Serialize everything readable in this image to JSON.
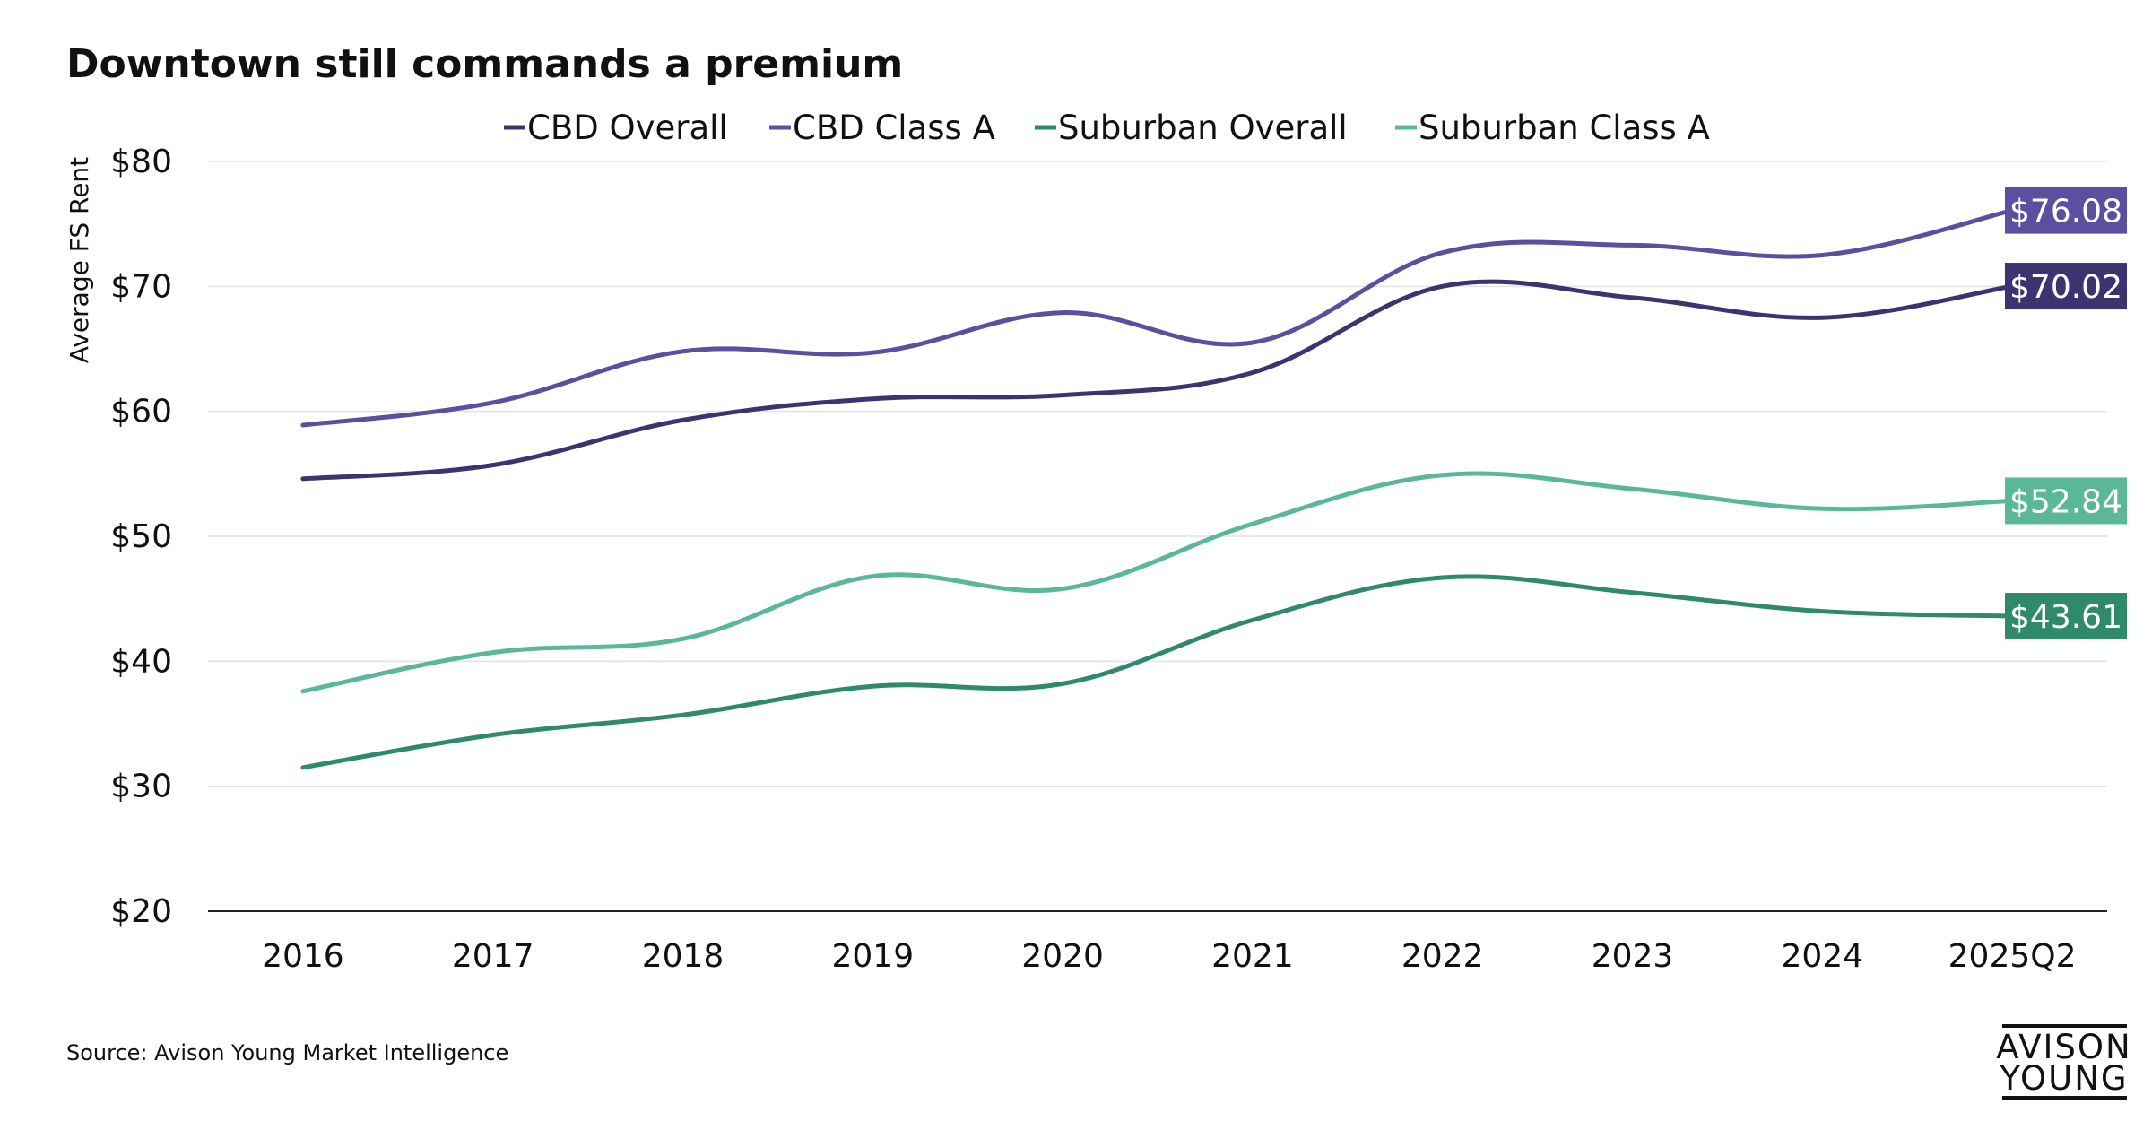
{
  "chart_data": {
    "type": "line",
    "title": "Downtown still commands a premium",
    "ylabel": "Average FS Rent",
    "xlabel": "",
    "ylim": [
      20,
      80
    ],
    "yticks": [
      20,
      30,
      40,
      50,
      60,
      70,
      80
    ],
    "ytick_labels": [
      "$20",
      "$30",
      "$40",
      "$50",
      "$60",
      "$70",
      "$80"
    ],
    "categories": [
      "2016",
      "2017",
      "2018",
      "2019",
      "2020",
      "2021",
      "2022",
      "2023",
      "2024",
      "2025Q2"
    ],
    "grid": "horizontal",
    "legend_position": "top-center",
    "series": [
      {
        "name": "CBD Overall",
        "color": "#3b3470",
        "values": [
          54.6,
          55.7,
          59.3,
          61.0,
          61.3,
          63.1,
          70.0,
          69.1,
          67.5,
          70.02
        ],
        "end_label": "$70.02"
      },
      {
        "name": "CBD Class A",
        "color": "#5b4f9f",
        "values": [
          58.9,
          60.7,
          64.8,
          64.7,
          67.9,
          65.5,
          72.7,
          73.3,
          72.5,
          76.08
        ],
        "end_label": "$76.08"
      },
      {
        "name": "Suburban Overall",
        "color": "#2f8a6c",
        "values": [
          31.5,
          34.1,
          35.7,
          38.0,
          38.2,
          43.3,
          46.7,
          45.5,
          44.0,
          43.61
        ],
        "end_label": "$43.61"
      },
      {
        "name": "Suburban Class A",
        "color": "#5bb896",
        "values": [
          37.6,
          40.7,
          41.8,
          46.8,
          45.8,
          51.0,
          54.9,
          53.8,
          52.2,
          52.84
        ],
        "end_label": "$52.84"
      }
    ]
  },
  "source": "Source: Avison Young Market Intelligence",
  "logo": {
    "line1": "AVISON",
    "line2": "YOUNG"
  }
}
